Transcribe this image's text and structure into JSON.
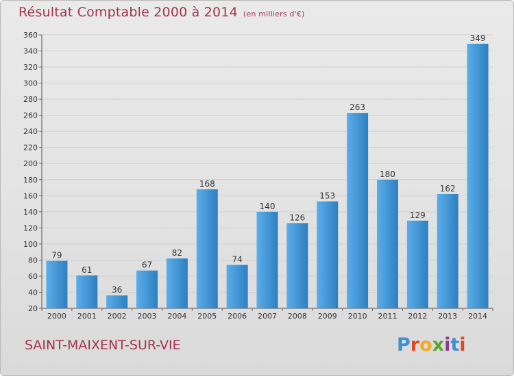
{
  "title": "Résultat Comptable 2000 à 2014",
  "subtitle": "(en milliers d'€)",
  "location": "SAINT-MAIXENT-SUR-VIE",
  "logo": {
    "text": "Proxiti",
    "colors": [
      "#3f8fd1",
      "#e2481e",
      "#f3a81e",
      "#5ba630",
      "#8a3b8f",
      "#3f8fd1",
      "#e2481e"
    ]
  },
  "colors": {
    "bar_light": "#5aaeea",
    "bar_dark": "#2f7fc0",
    "title": "#a33150"
  },
  "chart_data": {
    "type": "bar",
    "categories": [
      "2000",
      "2001",
      "2002",
      "2003",
      "2004",
      "2005",
      "2006",
      "2007",
      "2008",
      "2009",
      "2010",
      "2011",
      "2012",
      "2013",
      "2014"
    ],
    "values": [
      79,
      61,
      36,
      67,
      82,
      168,
      74,
      140,
      126,
      153,
      263,
      180,
      129,
      162,
      349
    ],
    "ylim": [
      20,
      360
    ],
    "yticks": [
      20,
      40,
      60,
      80,
      100,
      120,
      140,
      160,
      180,
      200,
      220,
      240,
      260,
      280,
      300,
      320,
      340,
      360
    ],
    "grid": true
  }
}
